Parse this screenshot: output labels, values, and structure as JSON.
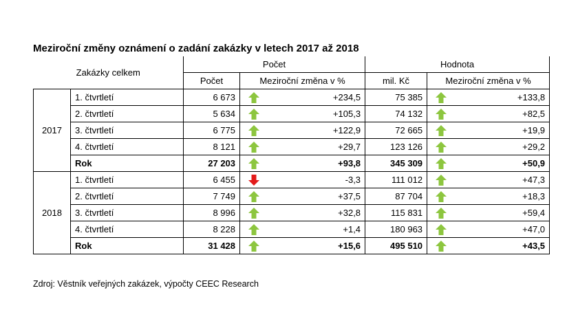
{
  "title": "Meziroční změny oznámení o zadání zakázky v letech 2017 až 2018",
  "source": "Zdroj: Věstník veřejných zakázek, výpočty CEEC Research",
  "header": {
    "zakazky": "Zakázky celkem",
    "pocet_group": "Počet",
    "hodnota_group": "Hodnota",
    "pocet": "Počet",
    "zmena_pocet": "Meziroční změna v %",
    "mil_kc": "mil. Kč",
    "zmena_hodnota": "Meziroční změna v %"
  },
  "colors": {
    "up": "#8dc63f",
    "down": "#e31b1b"
  },
  "years": [
    {
      "year": "2017",
      "rows": [
        {
          "label": "1. čtvrtletí",
          "pocet": "6 673",
          "pocet_dir": "up",
          "pocet_zmena": "+234,5",
          "hodnota": "75 385",
          "hodnota_dir": "up",
          "hodnota_zmena": "+133,8"
        },
        {
          "label": "2. čtvrtletí",
          "pocet": "5 634",
          "pocet_dir": "up",
          "pocet_zmena": "+105,3",
          "hodnota": "74 132",
          "hodnota_dir": "up",
          "hodnota_zmena": "+82,5"
        },
        {
          "label": "3. čtvrtletí",
          "pocet": "6 775",
          "pocet_dir": "up",
          "pocet_zmena": "+122,9",
          "hodnota": "72 665",
          "hodnota_dir": "up",
          "hodnota_zmena": "+19,9"
        },
        {
          "label": "4. čtvrtletí",
          "pocet": "8 121",
          "pocet_dir": "up",
          "pocet_zmena": "+29,7",
          "hodnota": "123 126",
          "hodnota_dir": "up",
          "hodnota_zmena": "+29,2"
        },
        {
          "label": "Rok",
          "total": true,
          "pocet": "27 203",
          "pocet_dir": "up",
          "pocet_zmena": "+93,8",
          "hodnota": "345 309",
          "hodnota_dir": "up",
          "hodnota_zmena": "+50,9"
        }
      ]
    },
    {
      "year": "2018",
      "rows": [
        {
          "label": "1. čtvrtletí",
          "pocet": "6 455",
          "pocet_dir": "down",
          "pocet_zmena": "-3,3",
          "hodnota": "111 012",
          "hodnota_dir": "up",
          "hodnota_zmena": "+47,3"
        },
        {
          "label": "2. čtvrtletí",
          "pocet": "7 749",
          "pocet_dir": "up",
          "pocet_zmena": "+37,5",
          "hodnota": "87 704",
          "hodnota_dir": "up",
          "hodnota_zmena": "+18,3"
        },
        {
          "label": "3. čtvrtletí",
          "pocet": "8 996",
          "pocet_dir": "up",
          "pocet_zmena": "+32,8",
          "hodnota": "115 831",
          "hodnota_dir": "up",
          "hodnota_zmena": "+59,4"
        },
        {
          "label": "4. čtvrtletí",
          "pocet": "8 228",
          "pocet_dir": "up",
          "pocet_zmena": "+1,4",
          "hodnota": "180 963",
          "hodnota_dir": "up",
          "hodnota_zmena": "+47,0"
        },
        {
          "label": "Rok",
          "total": true,
          "pocet": "31 428",
          "pocet_dir": "up",
          "pocet_zmena": "+15,6",
          "hodnota": "495 510",
          "hodnota_dir": "up",
          "hodnota_zmena": "+43,5"
        }
      ]
    }
  ]
}
